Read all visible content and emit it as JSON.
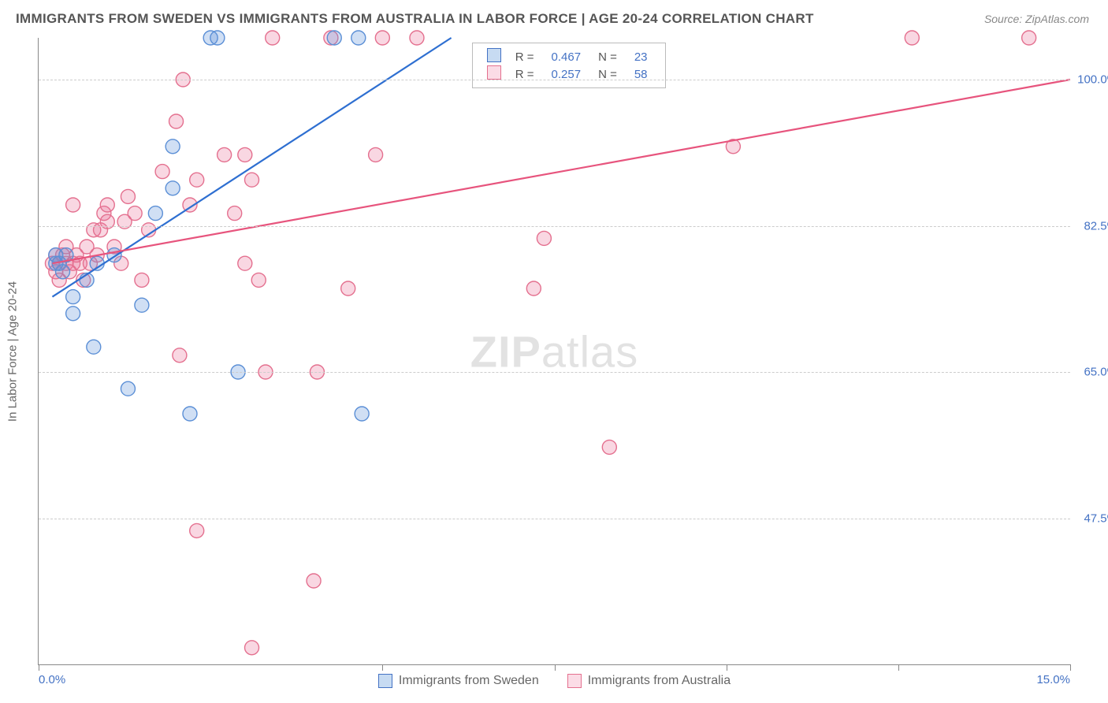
{
  "title": "IMMIGRANTS FROM SWEDEN VS IMMIGRANTS FROM AUSTRALIA IN LABOR FORCE | AGE 20-24 CORRELATION CHART",
  "source": "Source: ZipAtlas.com",
  "y_axis_title": "In Labor Force | Age 20-24",
  "watermark_bold": "ZIP",
  "watermark_light": "atlas",
  "chart": {
    "type": "scatter",
    "background_color": "#ffffff",
    "grid_color": "#cccccc",
    "axis_color": "#888888",
    "tick_label_color": "#4472c4",
    "tick_label_fontsize": 15,
    "title_fontsize": 17,
    "title_color": "#555555",
    "xlim": [
      0.0,
      15.0
    ],
    "ylim": [
      30.0,
      105.0
    ],
    "x_ticks": [
      0.0,
      5.0,
      7.5,
      10.0,
      12.5,
      15.0
    ],
    "x_tick_labels": [
      "0.0%",
      "",
      "",
      "",
      "",
      "15.0%"
    ],
    "y_gridlines": [
      47.5,
      65.0,
      82.5,
      100.0
    ],
    "y_tick_labels": [
      "47.5%",
      "65.0%",
      "82.5%",
      "100.0%"
    ],
    "marker_radius": 9,
    "marker_stroke_width": 1.4,
    "line_width": 2.2,
    "series": [
      {
        "name": "Immigrants from Sweden",
        "color_fill": "rgba(100,150,220,0.30)",
        "color_stroke": "#5b8fd6",
        "swatch_fill": "#c7dbf2",
        "swatch_border": "#4472c4",
        "line_color": "#2e6fd1",
        "R": "0.467",
        "N": "23",
        "trend_x1": 0.2,
        "trend_y1": 74.0,
        "trend_x2": 6.0,
        "trend_y2": 105.0,
        "points": [
          [
            0.25,
            78
          ],
          [
            0.25,
            79
          ],
          [
            0.3,
            78
          ],
          [
            0.35,
            77
          ],
          [
            0.4,
            79
          ],
          [
            0.5,
            72
          ],
          [
            0.5,
            74
          ],
          [
            0.7,
            76
          ],
          [
            0.8,
            68
          ],
          [
            0.85,
            78
          ],
          [
            1.1,
            79
          ],
          [
            1.3,
            63
          ],
          [
            1.5,
            73
          ],
          [
            1.7,
            84
          ],
          [
            1.95,
            92
          ],
          [
            1.95,
            87
          ],
          [
            2.2,
            60
          ],
          [
            2.5,
            105
          ],
          [
            2.6,
            105
          ],
          [
            2.9,
            65
          ],
          [
            4.3,
            105
          ],
          [
            4.65,
            105
          ],
          [
            4.7,
            60
          ]
        ]
      },
      {
        "name": "Immigrants from Australia",
        "color_fill": "rgba(235,110,150,0.28)",
        "color_stroke": "#e4708f",
        "swatch_fill": "#fbdce6",
        "swatch_border": "#e4708f",
        "line_color": "#e7547d",
        "R": "0.257",
        "N": "58",
        "trend_x1": 0.2,
        "trend_y1": 78.0,
        "trend_x2": 15.0,
        "trend_y2": 100.0,
        "points": [
          [
            0.2,
            78
          ],
          [
            0.25,
            77
          ],
          [
            0.25,
            79
          ],
          [
            0.3,
            76
          ],
          [
            0.3,
            78
          ],
          [
            0.35,
            79
          ],
          [
            0.4,
            78
          ],
          [
            0.4,
            80
          ],
          [
            0.45,
            77
          ],
          [
            0.5,
            78
          ],
          [
            0.5,
            85
          ],
          [
            0.55,
            79
          ],
          [
            0.6,
            78
          ],
          [
            0.65,
            76
          ],
          [
            0.7,
            80
          ],
          [
            0.75,
            78
          ],
          [
            0.8,
            82
          ],
          [
            0.85,
            79
          ],
          [
            0.9,
            82
          ],
          [
            0.95,
            84
          ],
          [
            1.0,
            83
          ],
          [
            1.0,
            85
          ],
          [
            1.1,
            80
          ],
          [
            1.2,
            78
          ],
          [
            1.25,
            83
          ],
          [
            1.3,
            86
          ],
          [
            1.4,
            84
          ],
          [
            1.5,
            76
          ],
          [
            1.6,
            82
          ],
          [
            1.8,
            89
          ],
          [
            2.0,
            95
          ],
          [
            2.05,
            67
          ],
          [
            2.1,
            100
          ],
          [
            2.2,
            85
          ],
          [
            2.3,
            46
          ],
          [
            2.3,
            88
          ],
          [
            2.7,
            91
          ],
          [
            2.85,
            84
          ],
          [
            3.0,
            91
          ],
          [
            3.0,
            78
          ],
          [
            3.1,
            88
          ],
          [
            3.1,
            32
          ],
          [
            3.2,
            76
          ],
          [
            3.3,
            65
          ],
          [
            3.4,
            105
          ],
          [
            4.0,
            40
          ],
          [
            4.05,
            65
          ],
          [
            4.25,
            105
          ],
          [
            4.5,
            75
          ],
          [
            4.9,
            91
          ],
          [
            5.0,
            105
          ],
          [
            5.5,
            105
          ],
          [
            7.2,
            75
          ],
          [
            7.35,
            81
          ],
          [
            8.3,
            56
          ],
          [
            10.1,
            92
          ],
          [
            12.7,
            105
          ],
          [
            14.4,
            105
          ]
        ]
      }
    ]
  },
  "bottom_legend": [
    {
      "label": "Immigrants from Sweden"
    },
    {
      "label": "Immigrants from Australia"
    }
  ]
}
